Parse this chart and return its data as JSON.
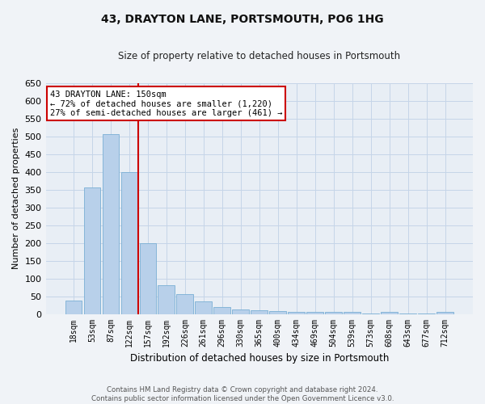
{
  "title": "43, DRAYTON LANE, PORTSMOUTH, PO6 1HG",
  "subtitle": "Size of property relative to detached houses in Portsmouth",
  "xlabel": "Distribution of detached houses by size in Portsmouth",
  "ylabel": "Number of detached properties",
  "bar_color": "#b8d0ea",
  "bar_edge_color": "#7aafd4",
  "categories": [
    "18sqm",
    "53sqm",
    "87sqm",
    "122sqm",
    "157sqm",
    "192sqm",
    "226sqm",
    "261sqm",
    "296sqm",
    "330sqm",
    "365sqm",
    "400sqm",
    "434sqm",
    "469sqm",
    "504sqm",
    "539sqm",
    "573sqm",
    "608sqm",
    "643sqm",
    "677sqm",
    "712sqm"
  ],
  "values": [
    37,
    357,
    507,
    400,
    200,
    80,
    55,
    35,
    20,
    13,
    10,
    8,
    6,
    5,
    6,
    5,
    1,
    6,
    1,
    1,
    5
  ],
  "property_line_index": 4.5,
  "property_line_color": "#cc0000",
  "annotation_line1": "43 DRAYTON LANE: 150sqm",
  "annotation_line2": "← 72% of detached houses are smaller (1,220)",
  "annotation_line3": "27% of semi-detached houses are larger (461) →",
  "annotation_box_color": "#ffffff",
  "annotation_border_color": "#cc0000",
  "ylim": [
    0,
    650
  ],
  "yticks": [
    0,
    50,
    100,
    150,
    200,
    250,
    300,
    350,
    400,
    450,
    500,
    550,
    600,
    650
  ],
  "grid_color": "#c5d5e8",
  "background_color": "#e8eef5",
  "fig_background": "#f0f3f7",
  "footer_line1": "Contains HM Land Registry data © Crown copyright and database right 2024.",
  "footer_line2": "Contains public sector information licensed under the Open Government Licence v3.0."
}
